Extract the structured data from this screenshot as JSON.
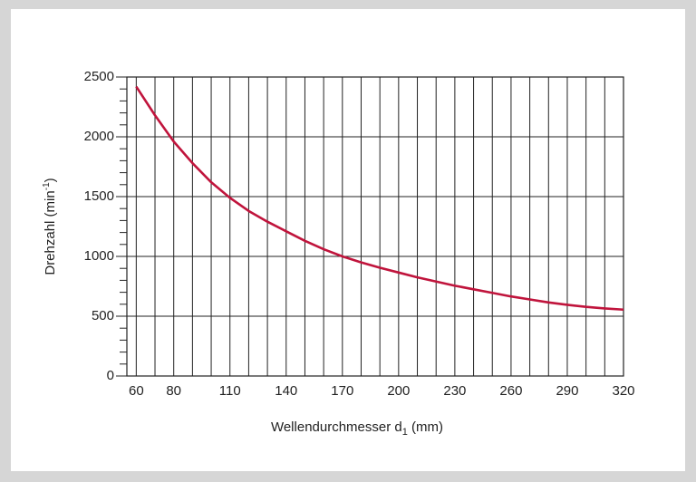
{
  "chart_data": {
    "type": "line",
    "ylabel": {
      "text": "Drehzahl  (min",
      "sup": "-1",
      "end": ")"
    },
    "xlabel": {
      "text": "Wellendurchmesser  d",
      "sub": "1",
      "end": "  (mm)"
    },
    "x": [
      60,
      70,
      80,
      90,
      100,
      110,
      120,
      130,
      140,
      150,
      160,
      170,
      180,
      190,
      200,
      210,
      220,
      230,
      240,
      250,
      260,
      270,
      280,
      290,
      300,
      310,
      320
    ],
    "series": [
      {
        "color": "#c0143c",
        "values": [
          2420,
          2180,
          1960,
          1780,
          1620,
          1490,
          1380,
          1290,
          1210,
          1130,
          1060,
          1000,
          950,
          905,
          865,
          825,
          790,
          755,
          725,
          695,
          665,
          640,
          615,
          595,
          578,
          565,
          555
        ]
      }
    ],
    "xlim": [
      55,
      320
    ],
    "ylim": [
      0,
      2500
    ],
    "xticks": [
      60,
      80,
      110,
      140,
      170,
      200,
      230,
      260,
      290,
      320
    ],
    "xminorticks": [
      70,
      90,
      100,
      120,
      130,
      150,
      160,
      180,
      190,
      210,
      220,
      240,
      250,
      270,
      280,
      300,
      310
    ],
    "yticks": [
      0,
      500,
      1000,
      1500,
      2000,
      2500
    ],
    "yminorticks": [
      100,
      200,
      300,
      400,
      600,
      700,
      800,
      900,
      1100,
      1200,
      1300,
      1400,
      1600,
      1700,
      1800,
      1900,
      2100,
      2200,
      2300,
      2400
    ],
    "grid": true
  }
}
